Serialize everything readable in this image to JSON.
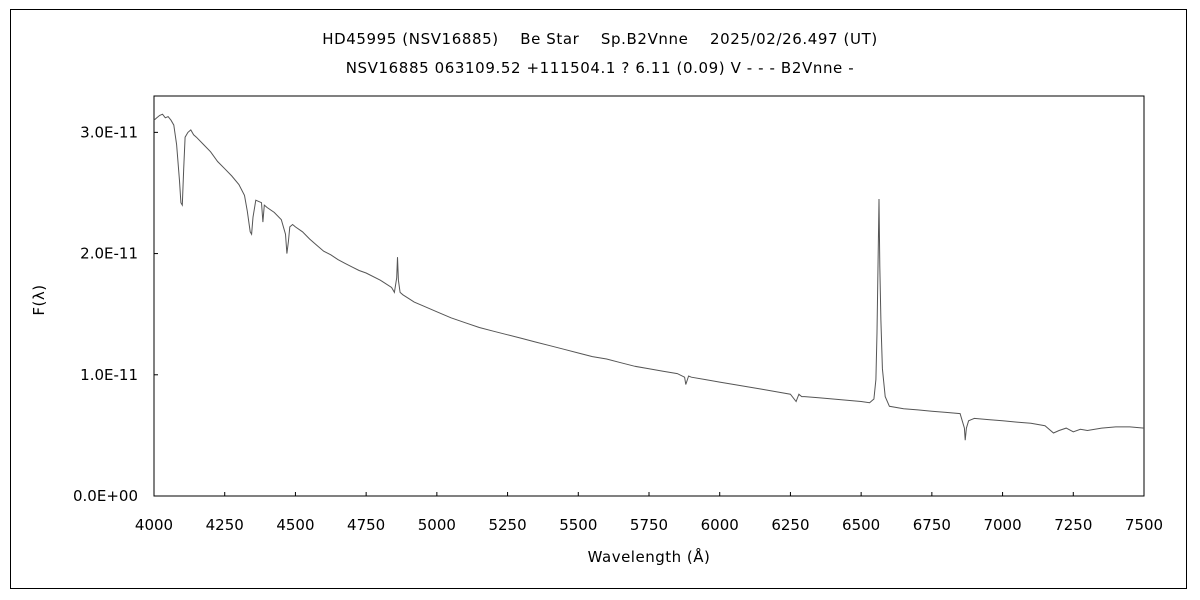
{
  "chart_data": {
    "type": "line",
    "title": "HD45995 (NSV16885)    Be Star    Sp.B2Vnne    2025/02/26.497 (UT)",
    "subtitle": "NSV16885 063109.52 +111504.1 ? 6.11 (0.09) V - - - B2Vnne -",
    "xlabel": "Wavelength (Å)",
    "ylabel": "F(λ)",
    "xlim": [
      4000,
      7500
    ],
    "ylim": [
      0,
      3.3e-11
    ],
    "x_ticks": [
      4000,
      4250,
      4500,
      4750,
      5000,
      5250,
      5500,
      5750,
      6000,
      6250,
      6500,
      6750,
      7000,
      7250,
      7500
    ],
    "x_tick_labels": [
      "4000",
      "4250",
      "4500",
      "4750",
      "5000",
      "5250",
      "5500",
      "5750",
      "6000",
      "6250",
      "6500",
      "6750",
      "7000",
      "7250",
      "7500"
    ],
    "y_ticks": [
      0,
      1e-11,
      2e-11,
      3e-11
    ],
    "y_tick_labels": [
      "0.0E+00",
      "1.0E-11",
      "2.0E-11",
      "3.0E-11"
    ],
    "grid": false,
    "legend": "none",
    "line_color": "#555555",
    "series": [
      {
        "x": [
          4000,
          4010,
          4020,
          4030,
          4040,
          4050,
          4060,
          4070,
          4080,
          4090,
          4095,
          4100,
          4105,
          4110,
          4120,
          4130,
          4140,
          4150,
          4175,
          4200,
          4225,
          4250,
          4275,
          4300,
          4320,
          4330,
          4340,
          4345,
          4350,
          4360,
          4380,
          4385,
          4390,
          4400,
          4425,
          4450,
          4465,
          4470,
          4475,
          4480,
          4490,
          4500,
          4525,
          4550,
          4575,
          4600,
          4625,
          4650,
          4675,
          4700,
          4725,
          4750,
          4800,
          4840,
          4850,
          4858,
          4861,
          4864,
          4870,
          4880,
          4900,
          4920,
          4950,
          5000,
          5050,
          5100,
          5150,
          5200,
          5250,
          5300,
          5350,
          5400,
          5450,
          5500,
          5550,
          5600,
          5650,
          5700,
          5750,
          5800,
          5850,
          5876,
          5880,
          5890,
          5900,
          5950,
          6000,
          6050,
          6100,
          6150,
          6200,
          6250,
          6270,
          6280,
          6290,
          6300,
          6350,
          6400,
          6450,
          6500,
          6530,
          6545,
          6552,
          6556,
          6560,
          6563,
          6566,
          6570,
          6575,
          6585,
          6600,
          6650,
          6700,
          6750,
          6800,
          6850,
          6865,
          6868,
          6872,
          6880,
          6890,
          6900,
          6950,
          7000,
          7050,
          7100,
          7150,
          7180,
          7200,
          7225,
          7250,
          7275,
          7300,
          7350,
          7400,
          7450,
          7500
        ],
        "y": [
          3.1e-11,
          3.12e-11,
          3.14e-11,
          3.15e-11,
          3.12e-11,
          3.13e-11,
          3.1e-11,
          3.06e-11,
          2.9e-11,
          2.6e-11,
          2.42e-11,
          2.4e-11,
          2.7e-11,
          2.96e-11,
          3e-11,
          3.02e-11,
          2.98e-11,
          2.96e-11,
          2.9e-11,
          2.84e-11,
          2.76e-11,
          2.7e-11,
          2.64e-11,
          2.57e-11,
          2.48e-11,
          2.35e-11,
          2.18e-11,
          2.16e-11,
          2.3e-11,
          2.44e-11,
          2.42e-11,
          2.26e-11,
          2.4e-11,
          2.38e-11,
          2.34e-11,
          2.28e-11,
          2.16e-11,
          2e-11,
          2.1e-11,
          2.22e-11,
          2.24e-11,
          2.22e-11,
          2.18e-11,
          2.12e-11,
          2.07e-11,
          2.02e-11,
          1.99e-11,
          1.95e-11,
          1.92e-11,
          1.89e-11,
          1.86e-11,
          1.84e-11,
          1.78e-11,
          1.72e-11,
          1.68e-11,
          1.8e-11,
          1.97e-11,
          1.78e-11,
          1.68e-11,
          1.66e-11,
          1.63e-11,
          1.6e-11,
          1.57e-11,
          1.52e-11,
          1.47e-11,
          1.43e-11,
          1.39e-11,
          1.36e-11,
          1.33e-11,
          1.3e-11,
          1.27e-11,
          1.24e-11,
          1.21e-11,
          1.18e-11,
          1.15e-11,
          1.13e-11,
          1.1e-11,
          1.07e-11,
          1.05e-11,
          1.03e-11,
          1.01e-11,
          9.8e-12,
          9.2e-12,
          9.9e-12,
          9.8e-12,
          9.6e-12,
          9.4e-12,
          9.2e-12,
          9e-12,
          8.8e-12,
          8.6e-12,
          8.4e-12,
          7.8e-12,
          8.4e-12,
          8.2e-12,
          8.2e-12,
          8.1e-12,
          8e-12,
          7.9e-12,
          7.8e-12,
          7.7e-12,
          8e-12,
          9.6e-12,
          1.35e-11,
          1.95e-11,
          2.45e-11,
          1.9e-11,
          1.45e-11,
          1.05e-11,
          8.2e-12,
          7.4e-12,
          7.2e-12,
          7.1e-12,
          7e-12,
          6.9e-12,
          6.8e-12,
          5.6e-12,
          4.6e-12,
          5.6e-12,
          6.2e-12,
          6.3e-12,
          6.4e-12,
          6.3e-12,
          6.2e-12,
          6.1e-12,
          6e-12,
          5.8e-12,
          5.2e-12,
          5.4e-12,
          5.6e-12,
          5.3e-12,
          5.5e-12,
          5.4e-12,
          5.6e-12,
          5.7e-12,
          5.7e-12,
          5.6e-12
        ]
      }
    ]
  }
}
